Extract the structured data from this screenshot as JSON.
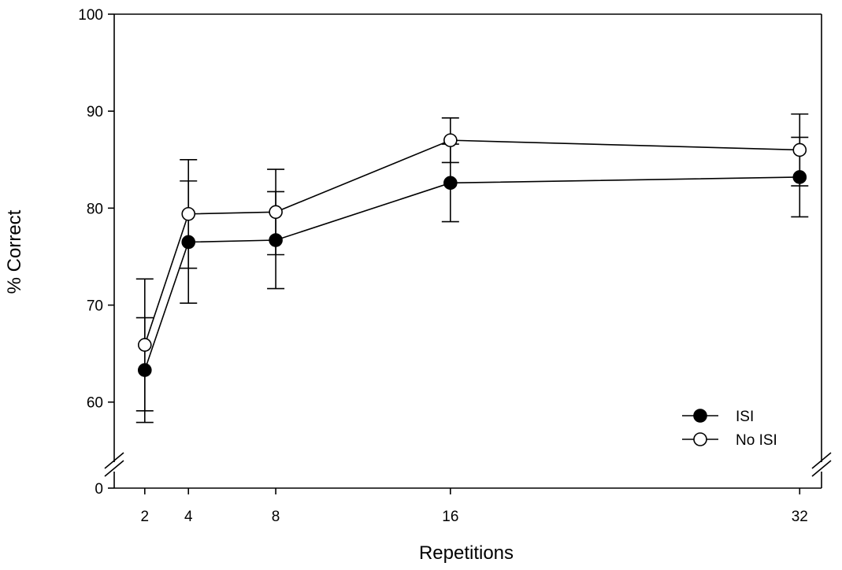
{
  "chart_data": {
    "type": "line",
    "xlabel": "Repetitions",
    "ylabel": "% Correct",
    "x": [
      2,
      4,
      8,
      16,
      32
    ],
    "x_ticks": [
      "2",
      "4",
      "8",
      "16",
      "32"
    ],
    "xlim": [
      0.6,
      33
    ],
    "y_ticks": [
      "0",
      "60",
      "70",
      "80",
      "90",
      "100"
    ],
    "ylim_main": [
      56,
      100
    ],
    "ylim_below_break": [
      0,
      0
    ],
    "axis_break": true,
    "grid": false,
    "legend_position": "lower-right",
    "series": [
      {
        "name": "ISI",
        "marker": "filled-circle",
        "values": [
          63.3,
          76.5,
          76.7,
          82.6,
          83.2
        ],
        "errors": [
          5.4,
          6.3,
          5.0,
          4.0,
          4.1
        ]
      },
      {
        "name": "No ISI",
        "marker": "open-circle",
        "values": [
          65.9,
          79.4,
          79.6,
          87.0,
          86.0
        ],
        "errors": [
          6.8,
          5.6,
          4.4,
          2.3,
          3.7
        ]
      }
    ]
  }
}
